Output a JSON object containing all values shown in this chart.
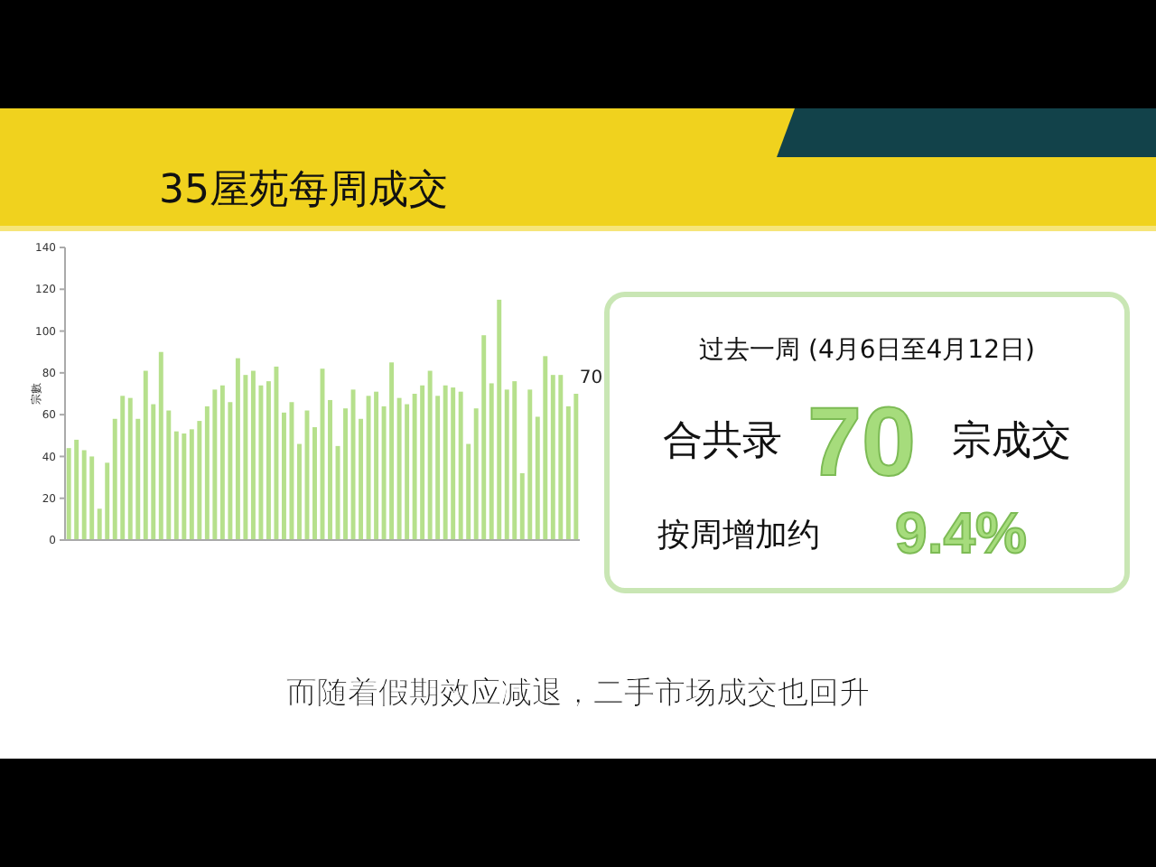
{
  "chart_data": {
    "type": "bar",
    "title": "35屋苑每周成交",
    "ylabel": "宗數",
    "categories": [
      null,
      null,
      null,
      null,
      null,
      null,
      null,
      null,
      null,
      null,
      null,
      null,
      null,
      null,
      null,
      null,
      null,
      null,
      null,
      null,
      null,
      null,
      null,
      null,
      null,
      null,
      null,
      null,
      null,
      null,
      null,
      null,
      null,
      null,
      null,
      null,
      null,
      null,
      null,
      null,
      null,
      null,
      null,
      null,
      null,
      null,
      null,
      null,
      null,
      null,
      null,
      null,
      null,
      null,
      null,
      null,
      null,
      null,
      null,
      null,
      null,
      null,
      null,
      null,
      null,
      null,
      null
    ],
    "values": [
      44,
      48,
      43,
      40,
      15,
      37,
      58,
      69,
      68,
      58,
      81,
      65,
      90,
      62,
      52,
      51,
      53,
      57,
      64,
      72,
      74,
      66,
      87,
      79,
      81,
      74,
      76,
      83,
      61,
      66,
      46,
      62,
      54,
      82,
      67,
      45,
      63,
      72,
      58,
      69,
      71,
      64,
      85,
      68,
      65,
      70,
      74,
      81,
      69,
      74,
      73,
      71,
      46,
      63,
      98,
      75,
      115,
      72,
      76,
      32,
      72,
      59,
      88,
      79,
      79,
      64,
      70
    ],
    "value_labels": [
      null,
      null,
      null,
      null,
      null,
      null,
      null,
      null,
      null,
      null,
      null,
      null,
      null,
      null,
      null,
      null,
      null,
      null,
      null,
      null,
      null,
      null,
      null,
      null,
      null,
      null,
      null,
      null,
      null,
      null,
      null,
      null,
      null,
      null,
      null,
      null,
      null,
      null,
      null,
      null,
      null,
      null,
      null,
      null,
      null,
      null,
      null,
      null,
      null,
      null,
      null,
      null,
      null,
      null,
      null,
      null,
      null,
      null,
      null,
      null,
      null,
      null,
      null,
      null,
      null,
      null,
      "70"
    ],
    "color": "#b6e08c",
    "ylim": [
      0,
      140
    ],
    "yticks": [
      0,
      20,
      40,
      60,
      80,
      100,
      120,
      140
    ],
    "grid": false,
    "annotations": [
      "过去一周 (4月6日至4月12日)",
      "合共录",
      "70",
      "宗成交",
      "按周增加约",
      "9.4%",
      "而随着假期效应减退，二手市场成交也回升"
    ]
  }
}
